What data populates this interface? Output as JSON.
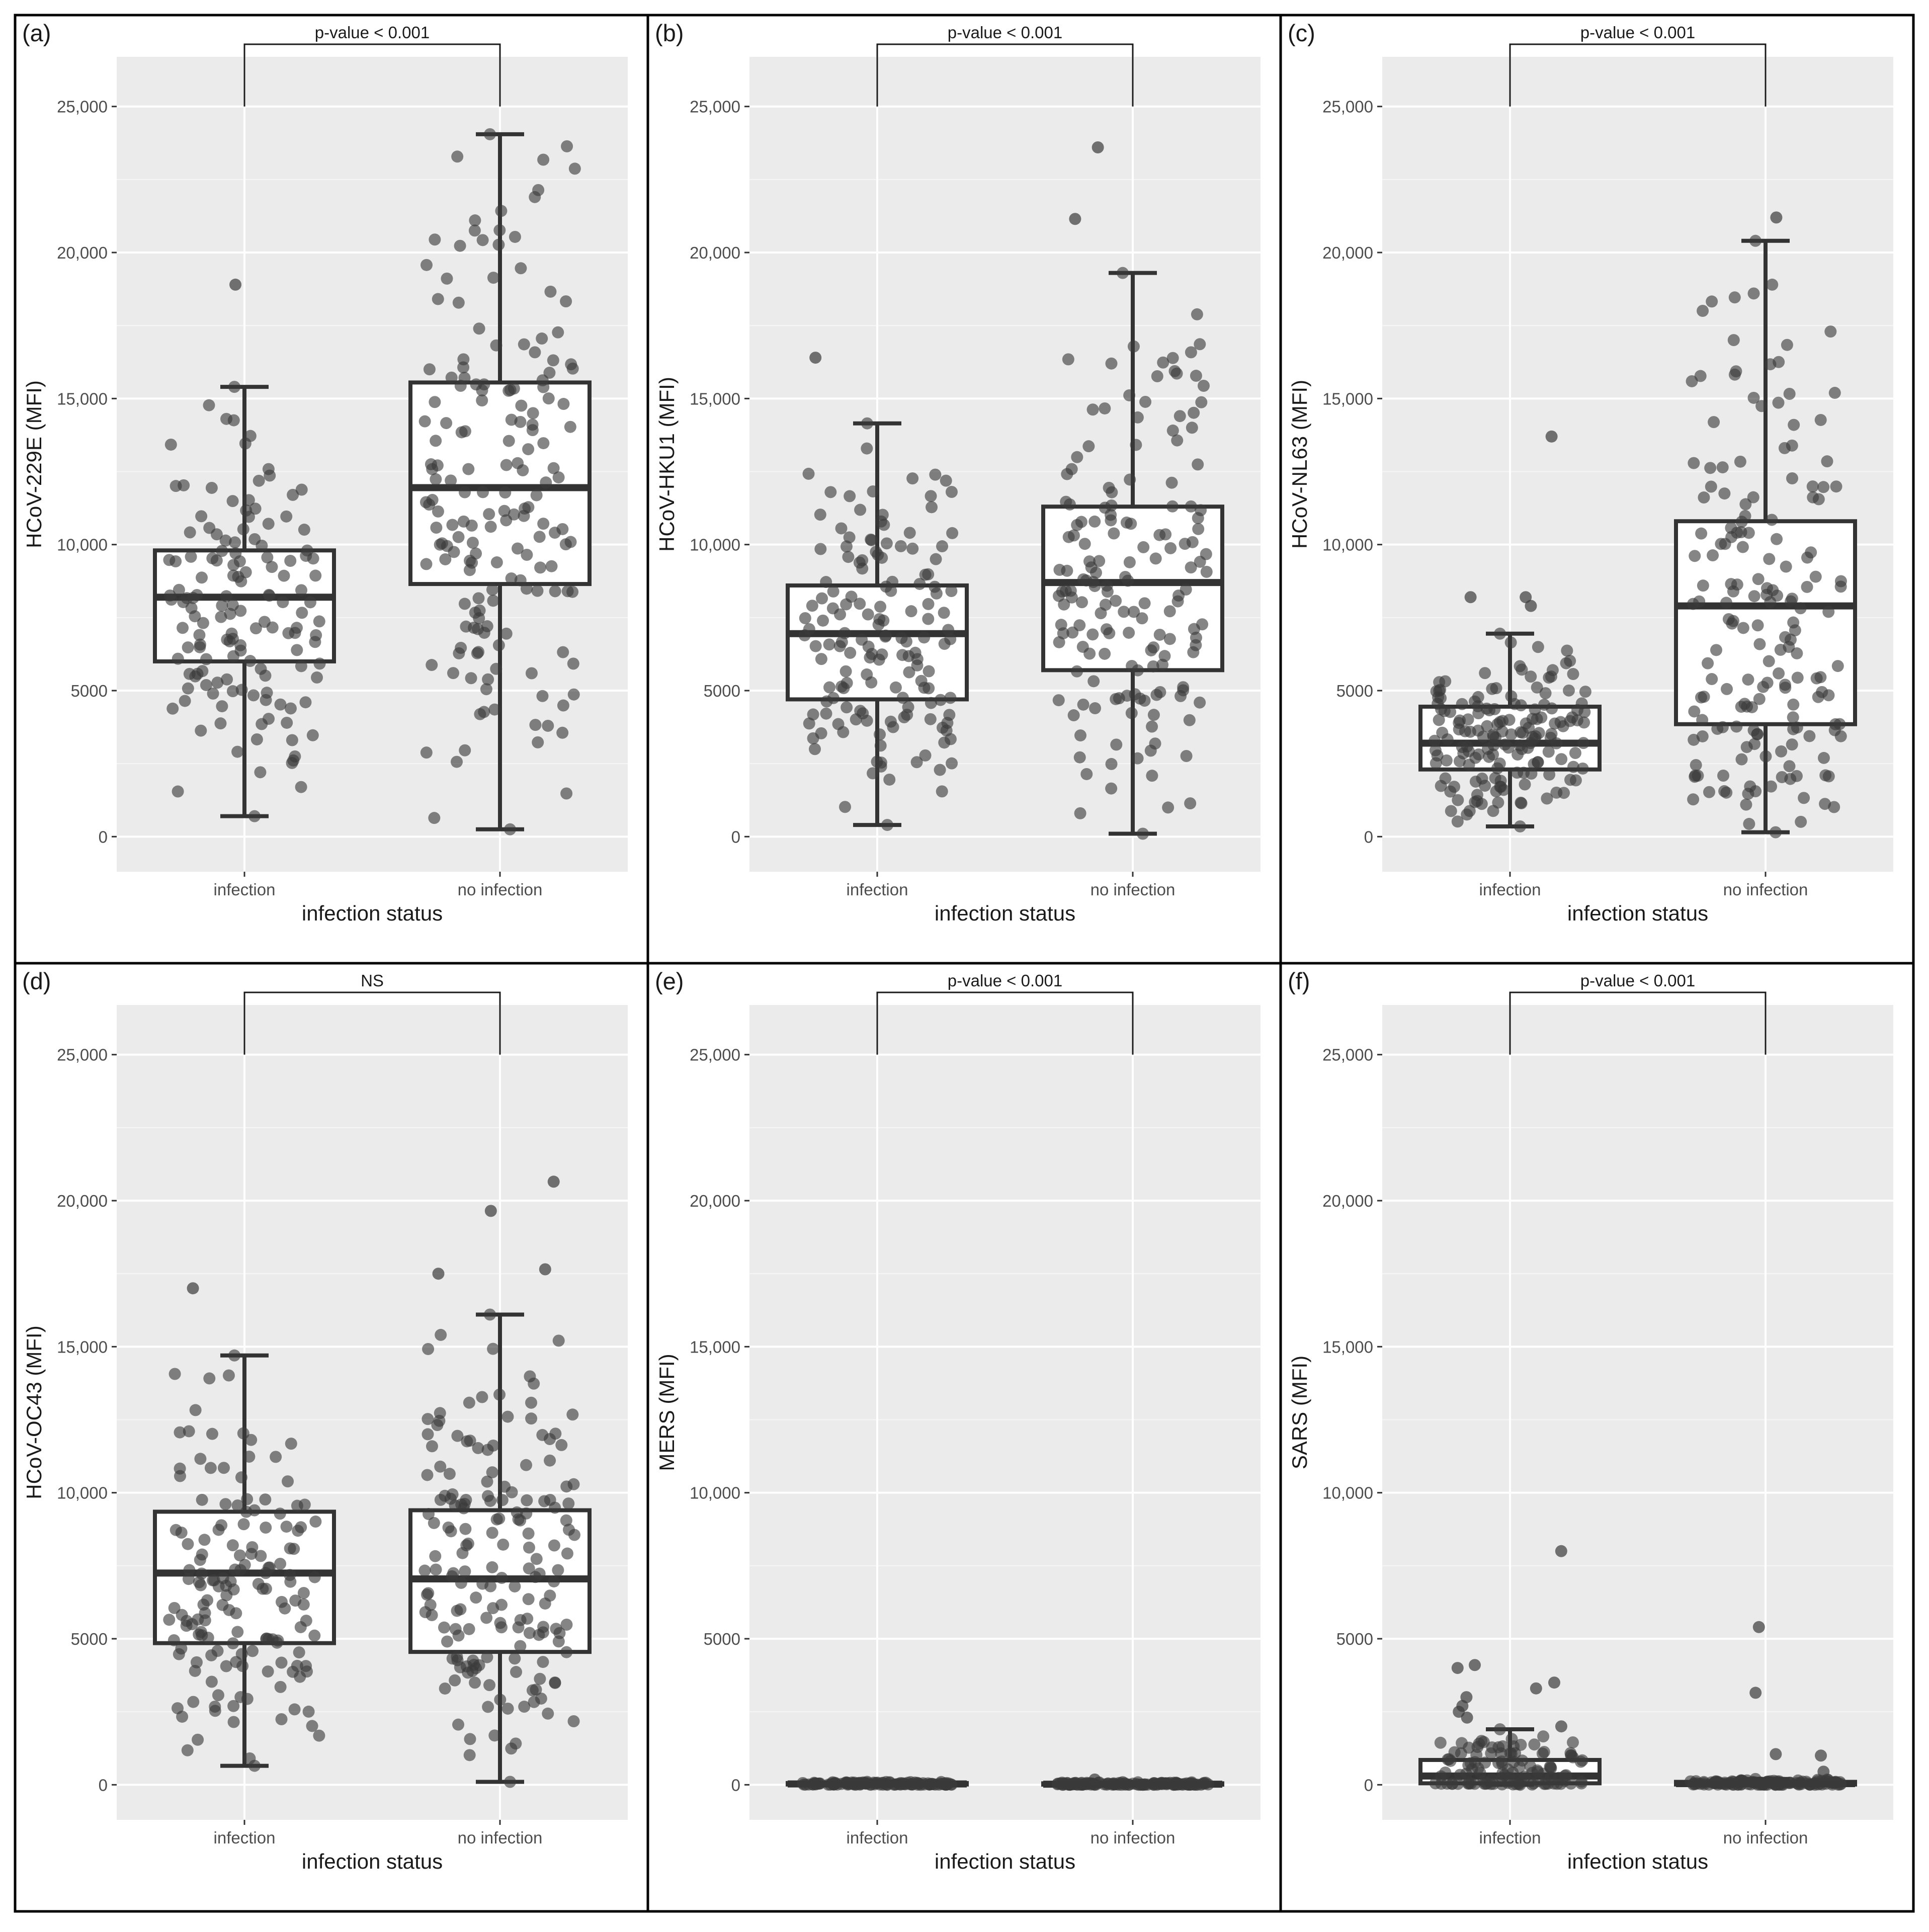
{
  "chart_data": [
    {
      "panel": "(a)",
      "type": "box",
      "ylabel": "HCoV-229E (MFI)",
      "xlabel": "infection status",
      "categories": [
        "infection",
        "no infection"
      ],
      "yticks": [
        0,
        5000,
        10000,
        15000,
        20000,
        25000
      ],
      "ytick_labels": [
        "0",
        "5000",
        "10,000",
        "15,000",
        "20,000",
        "25,000"
      ],
      "ylim": [
        -1200,
        26700
      ],
      "significance": "p-value < 0.001",
      "boxes": [
        {
          "name": "infection",
          "whisker_low": 700,
          "q1": 6000,
          "median": 8200,
          "q3": 9800,
          "whisker_high": 15400,
          "outliers": [
            18900
          ],
          "n_points": 140,
          "points_min": 700,
          "points_max": 15500
        },
        {
          "name": "no infection",
          "whisker_low": 250,
          "q1": 8650,
          "median": 11950,
          "q3": 15550,
          "whisker_high": 24050,
          "outliers": [],
          "n_points": 170,
          "points_min": 250,
          "points_max": 24050
        }
      ]
    },
    {
      "panel": "(b)",
      "type": "box",
      "ylabel": "HCoV-HKU1 (MFI)",
      "xlabel": "infection status",
      "categories": [
        "infection",
        "no infection"
      ],
      "yticks": [
        0,
        5000,
        10000,
        15000,
        20000,
        25000
      ],
      "ytick_labels": [
        "0",
        "5000",
        "10,000",
        "15,000",
        "20,000",
        "25,000"
      ],
      "ylim": [
        -1200,
        26700
      ],
      "significance": "p-value < 0.001",
      "boxes": [
        {
          "name": "infection",
          "whisker_low": 400,
          "q1": 4700,
          "median": 6950,
          "q3": 8600,
          "whisker_high": 14150,
          "outliers": [
            16400
          ],
          "n_points": 150,
          "points_min": 400,
          "points_max": 14150
        },
        {
          "name": "no infection",
          "whisker_low": 100,
          "q1": 5700,
          "median": 8700,
          "q3": 11300,
          "whisker_high": 19300,
          "outliers": [
            21150,
            23600
          ],
          "n_points": 160,
          "points_min": 100,
          "points_max": 19300
        }
      ]
    },
    {
      "panel": "(c)",
      "type": "box",
      "ylabel": "HCoV-NL63 (MFI)",
      "xlabel": "infection status",
      "categories": [
        "infection",
        "no infection"
      ],
      "yticks": [
        0,
        5000,
        10000,
        15000,
        20000,
        25000
      ],
      "ytick_labels": [
        "0",
        "5000",
        "10,000",
        "15,000",
        "20,000",
        "25,000"
      ],
      "ylim": [
        -1200,
        26700
      ],
      "significance": "p-value < 0.001",
      "boxes": [
        {
          "name": "infection",
          "whisker_low": 350,
          "q1": 2300,
          "median": 3200,
          "q3": 4450,
          "whisker_high": 6950,
          "outliers": [
            7900,
            8200,
            8200,
            13700
          ],
          "n_points": 160,
          "points_min": 350,
          "points_max": 6950
        },
        {
          "name": "no infection",
          "whisker_low": 150,
          "q1": 3850,
          "median": 7900,
          "q3": 10800,
          "whisker_high": 20400,
          "outliers": [
            21200
          ],
          "n_points": 170,
          "points_min": 150,
          "points_max": 20400
        }
      ]
    },
    {
      "panel": "(d)",
      "type": "box",
      "ylabel": "HCoV-OC43 (MFI)",
      "xlabel": "infection status",
      "categories": [
        "infection",
        "no infection"
      ],
      "yticks": [
        0,
        5000,
        10000,
        15000,
        20000,
        25000
      ],
      "ytick_labels": [
        "0",
        "5000",
        "10,000",
        "15,000",
        "20,000",
        "25,000"
      ],
      "ylim": [
        -1200,
        26700
      ],
      "significance": "NS",
      "boxes": [
        {
          "name": "infection",
          "whisker_low": 650,
          "q1": 4850,
          "median": 7250,
          "q3": 9350,
          "whisker_high": 14700,
          "outliers": [
            17000
          ],
          "n_points": 150,
          "points_min": 650,
          "points_max": 14700
        },
        {
          "name": "no infection",
          "whisker_low": 100,
          "q1": 4550,
          "median": 7050,
          "q3": 9400,
          "whisker_high": 16100,
          "outliers": [
            17500,
            17650,
            19650,
            20650
          ],
          "n_points": 170,
          "points_min": 100,
          "points_max": 16100
        }
      ]
    },
    {
      "panel": "(e)",
      "type": "box",
      "ylabel": "MERS (MFI)",
      "xlabel": "infection status",
      "categories": [
        "infection",
        "no infection"
      ],
      "yticks": [
        0,
        5000,
        10000,
        15000,
        20000,
        25000
      ],
      "ytick_labels": [
        "0",
        "5000",
        "10,000",
        "15,000",
        "20,000",
        "25,000"
      ],
      "ylim": [
        -1200,
        26700
      ],
      "significance": "p-value < 0.001",
      "boxes": [
        {
          "name": "infection",
          "whisker_low": 0,
          "q1": 10,
          "median": 30,
          "q3": 60,
          "whisker_high": 100,
          "outliers": [],
          "n_points": 120,
          "points_min": 0,
          "points_max": 100
        },
        {
          "name": "no infection",
          "whisker_low": 0,
          "q1": 5,
          "median": 20,
          "q3": 50,
          "whisker_high": 90,
          "outliers": [
            180
          ],
          "n_points": 130,
          "points_min": 0,
          "points_max": 90
        }
      ]
    },
    {
      "panel": "(f)",
      "type": "box",
      "ylabel": "SARS (MFI)",
      "xlabel": "infection status",
      "categories": [
        "infection",
        "no infection"
      ],
      "yticks": [
        0,
        5000,
        10000,
        15000,
        20000,
        25000
      ],
      "ytick_labels": [
        "0",
        "5000",
        "10,000",
        "15,000",
        "20,000",
        "25,000"
      ],
      "ylim": [
        -1200,
        26700
      ],
      "significance": "p-value < 0.001",
      "boxes": [
        {
          "name": "infection",
          "whisker_low": 0,
          "q1": 50,
          "median": 300,
          "q3": 850,
          "whisker_high": 1900,
          "outliers": [
            2000,
            2300,
            2500,
            2700,
            3000,
            3300,
            3500,
            4000,
            4100,
            8000
          ],
          "n_points": 110,
          "points_min": 0,
          "points_max": 1900
        },
        {
          "name": "no infection",
          "whisker_low": 0,
          "q1": 10,
          "median": 40,
          "q3": 100,
          "whisker_high": 200,
          "outliers": [
            450,
            1000,
            1050,
            3150,
            5400
          ],
          "n_points": 130,
          "points_min": 0,
          "points_max": 200
        }
      ]
    }
  ],
  "colors": {
    "panel_bg": "#ebebeb",
    "grid_major": "#ffffff",
    "box_fill": "#ffffff",
    "box_stroke": "#333333",
    "point_fill": "#3a3a3a",
    "frame": "#000000"
  }
}
